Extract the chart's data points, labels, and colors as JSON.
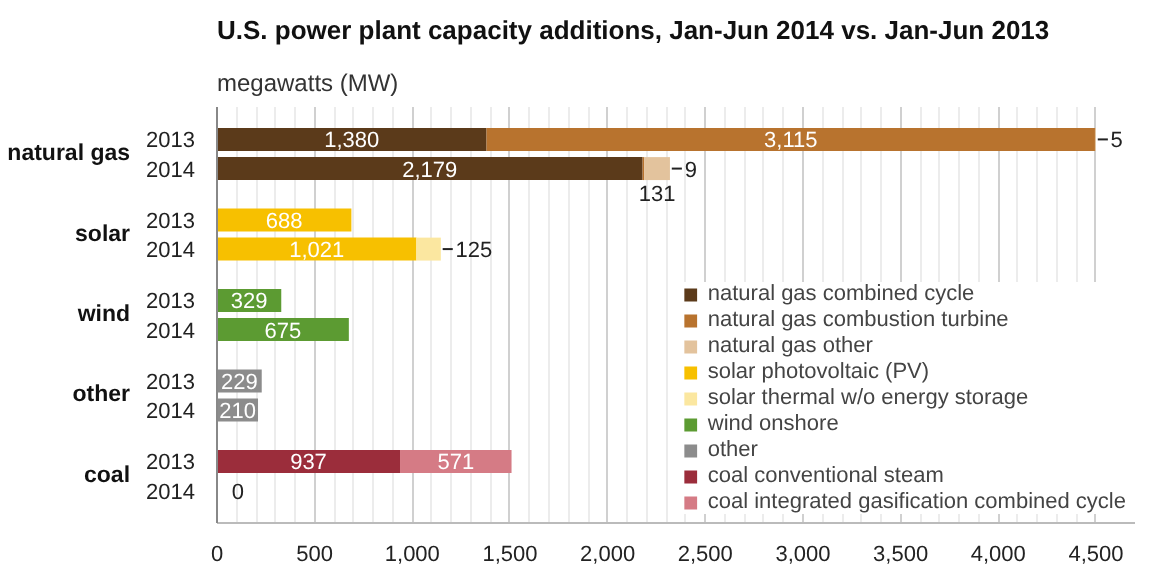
{
  "chart_data": {
    "type": "bar",
    "orientation": "horizontal",
    "stacked": true,
    "title": "U.S. power plant capacity additions, Jan-Jun 2014 vs. Jan-Jun 2013",
    "subtitle": "megawatts (MW)",
    "annotations": [
      "natural gas",
      "solar",
      "wind",
      "other",
      "coal"
    ],
    "categories": [
      "2013",
      "2014",
      "2013",
      "2014",
      "2013",
      "2014",
      "2013",
      "2014",
      "2013",
      "2014"
    ],
    "series": [
      {
        "name": "natural gas combined cycle",
        "color": "#5b3a1a",
        "values": [
          1380,
          2179,
          null,
          null,
          null,
          null,
          null,
          null,
          null,
          null
        ],
        "value_labels": [
          "1,380",
          "2,179",
          null,
          null,
          null,
          null,
          null,
          null,
          null,
          null
        ]
      },
      {
        "name": "natural gas combustion turbine",
        "color": "#b8732e",
        "values": [
          3115,
          9,
          null,
          null,
          null,
          null,
          null,
          null,
          null,
          null
        ],
        "value_labels": [
          "3,115",
          "9",
          null,
          null,
          null,
          null,
          null,
          null,
          null,
          null
        ]
      },
      {
        "name": "natural gas other",
        "color": "#e3c39d",
        "values": [
          5,
          131,
          null,
          null,
          null,
          null,
          null,
          null,
          null,
          null
        ],
        "value_labels": [
          "5",
          "131",
          null,
          null,
          null,
          null,
          null,
          null,
          null,
          null
        ]
      },
      {
        "name": "solar photovoltaic (PV)",
        "color": "#f7c000",
        "values": [
          null,
          null,
          688,
          1021,
          null,
          null,
          null,
          null,
          null,
          null
        ],
        "value_labels": [
          null,
          null,
          "688",
          "1,021",
          null,
          null,
          null,
          null,
          null,
          null
        ]
      },
      {
        "name": "solar thermal w/o energy storage",
        "color": "#fbe7a0",
        "values": [
          null,
          null,
          null,
          125,
          null,
          null,
          null,
          null,
          null,
          null
        ],
        "value_labels": [
          null,
          null,
          null,
          "125",
          null,
          null,
          null,
          null,
          null,
          null
        ]
      },
      {
        "name": "wind onshore",
        "color": "#5c9b32",
        "values": [
          null,
          null,
          null,
          null,
          329,
          675,
          null,
          null,
          null,
          null
        ],
        "value_labels": [
          null,
          null,
          null,
          null,
          "329",
          "675",
          null,
          null,
          null,
          null
        ]
      },
      {
        "name": "other",
        "color": "#8c8c8c",
        "values": [
          null,
          null,
          null,
          null,
          null,
          null,
          229,
          210,
          null,
          null
        ],
        "value_labels": [
          null,
          null,
          null,
          null,
          null,
          null,
          "229",
          "210",
          null,
          null
        ]
      },
      {
        "name": "coal conventional steam",
        "color": "#9b2d3b",
        "values": [
          null,
          null,
          null,
          null,
          null,
          null,
          null,
          null,
          937,
          0
        ],
        "value_labels": [
          null,
          null,
          null,
          null,
          null,
          null,
          null,
          null,
          "937",
          "0"
        ]
      },
      {
        "name": "coal integrated gasification combined cycle",
        "color": "#d57b85",
        "values": [
          null,
          null,
          null,
          null,
          null,
          null,
          null,
          null,
          571,
          null
        ],
        "value_labels": [
          null,
          null,
          null,
          null,
          null,
          null,
          null,
          null,
          "571",
          null
        ]
      }
    ],
    "xlim": [
      0,
      4700
    ],
    "xticks": [
      0,
      500,
      {
        "value": 1000,
        "label": "1,000"
      },
      {
        "value": 1500,
        "label": "1,500"
      },
      {
        "value": 2000,
        "label": "2,000"
      },
      {
        "value": 2500,
        "label": "2,500"
      },
      {
        "value": 3000,
        "label": "3,000"
      },
      {
        "value": 3500,
        "label": "3,500"
      },
      {
        "value": 4000,
        "label": "4,000"
      },
      {
        "value": 4500,
        "label": "4,500"
      }
    ],
    "grid": "x",
    "legend": "bottom right"
  }
}
